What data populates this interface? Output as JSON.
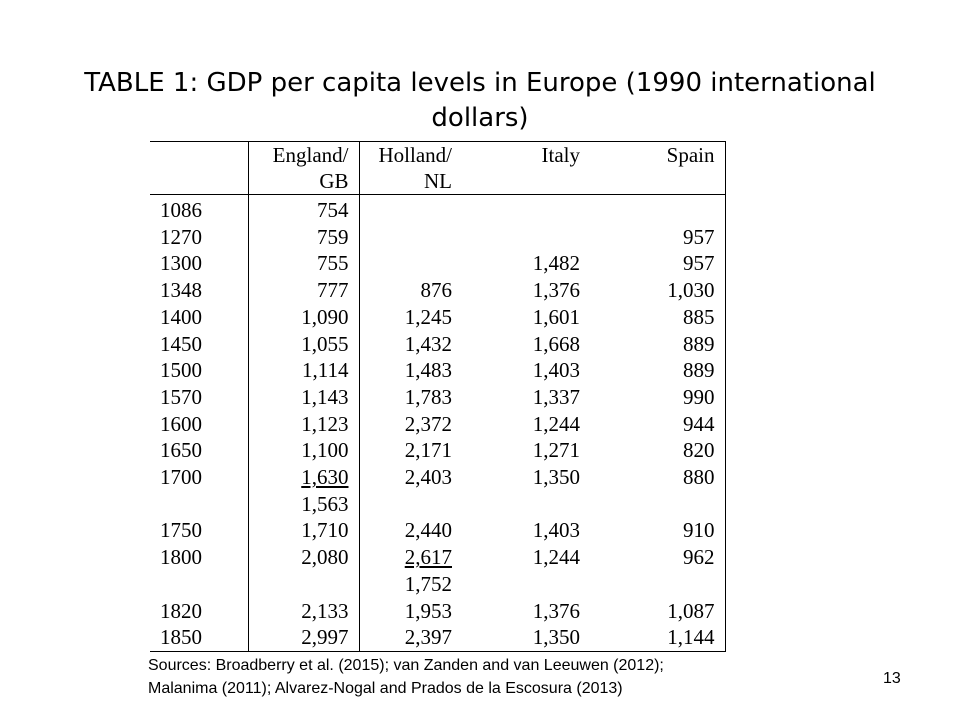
{
  "title": {
    "line1": "TABLE 1: GDP per capita levels in Europe (1990 international",
    "line2": "dollars)"
  },
  "table": {
    "headers": [
      {
        "line1": "",
        "line2": ""
      },
      {
        "line1": "England/",
        "line2": "GB"
      },
      {
        "line1": "Holland/",
        "line2": "NL"
      },
      {
        "line1": "Italy",
        "line2": ""
      },
      {
        "line1": "Spain",
        "line2": ""
      }
    ],
    "rows": [
      [
        "1086",
        "754",
        "",
        "",
        ""
      ],
      [
        "1270",
        "759",
        "",
        "",
        "957"
      ],
      [
        "1300",
        "755",
        "",
        "1,482",
        "957"
      ],
      [
        "1348",
        "777",
        "876",
        "1,376",
        "1,030"
      ],
      [
        "1400",
        "1,090",
        "1,245",
        "1,601",
        "885"
      ],
      [
        "1450",
        "1,055",
        "1,432",
        "1,668",
        "889"
      ],
      [
        "1500",
        "1,114",
        "1,483",
        "1,403",
        "889"
      ],
      [
        "1570",
        "1,143",
        "1,783",
        "1,337",
        "990"
      ],
      [
        "1600",
        "1,123",
        "2,372",
        "1,244",
        "944"
      ],
      [
        "1650",
        "1,100",
        "2,171",
        "1,271",
        "820"
      ],
      [
        "1700",
        "1,630",
        "2,403",
        "1,350",
        "880"
      ],
      [
        "",
        "1,563",
        "",
        "",
        ""
      ],
      [
        "1750",
        "1,710",
        "2,440",
        "1,403",
        "910"
      ],
      [
        "1800",
        "2,080",
        "2,617",
        "1,244",
        "962"
      ],
      [
        "",
        "",
        "1,752",
        "",
        ""
      ],
      [
        "1820",
        "2,133",
        "1,953",
        "1,376",
        "1,087"
      ],
      [
        "1850",
        "2,997",
        "2,397",
        "1,350",
        "1,144"
      ]
    ]
  },
  "sources": {
    "line1": "Sources: Broadberry et al. (2015); van Zanden and van Leeuwen (2012);",
    "line2": "Malanima (2011); Alvarez-Nogal and Prados de la Escosura (2013)"
  },
  "page_number": "13"
}
